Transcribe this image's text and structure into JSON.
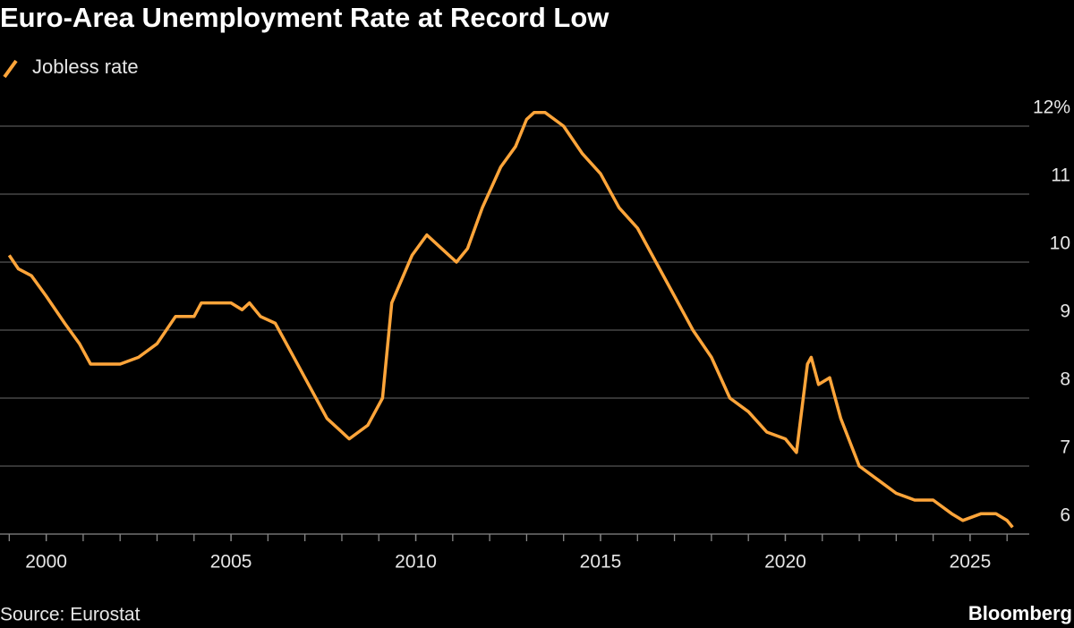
{
  "chart_data": {
    "type": "line",
    "title": "Euro-Area Unemployment Rate at Record Low",
    "source": "Source: Eurostat",
    "brand": "Bloomberg",
    "xlim": [
      1998.75,
      2026.6
    ],
    "xticks": [
      2000,
      2005,
      2010,
      2015,
      2020,
      2025
    ],
    "x_minor_ticks": [
      1999,
      2000,
      2001,
      2002,
      2003,
      2004,
      2005,
      2006,
      2007,
      2008,
      2009,
      2010,
      2011,
      2012,
      2013,
      2014,
      2015,
      2016,
      2017,
      2018,
      2019,
      2020,
      2021,
      2022,
      2023,
      2024,
      2025,
      2026
    ],
    "ylim": [
      6,
      12.5
    ],
    "yticks": [
      6,
      7,
      8,
      9,
      10,
      11,
      {
        "value": 12,
        "label": "12%"
      }
    ],
    "grid": true,
    "x": [
      1999.0,
      1999.25,
      1999.6,
      2000.0,
      2000.5,
      2000.9,
      2001.2,
      2002.0,
      2002.5,
      2003.0,
      2003.5,
      2004.0,
      2004.2,
      2005.0,
      2005.3,
      2005.5,
      2005.8,
      2006.2,
      2006.7,
      2007.2,
      2007.6,
      2008.0,
      2008.2,
      2008.7,
      2009.1,
      2009.35,
      2009.9,
      2010.3,
      2010.7,
      2011.1,
      2011.4,
      2011.8,
      2012.3,
      2012.7,
      2013.0,
      2013.2,
      2013.5,
      2014.0,
      2014.5,
      2015.0,
      2015.5,
      2016.0,
      2016.5,
      2017.0,
      2017.5,
      2018.0,
      2018.5,
      2019.0,
      2019.5,
      2020.0,
      2020.3,
      2020.6,
      2020.7,
      2020.9,
      2021.2,
      2021.5,
      2022.0,
      2022.5,
      2023.0,
      2023.5,
      2024.0,
      2024.5,
      2024.8,
      2025.3,
      2025.7,
      2026.0,
      2026.15
    ],
    "series": [
      {
        "name": "Jobless rate",
        "color": "#ffa53a",
        "values": [
          10.1,
          9.9,
          9.8,
          9.5,
          9.1,
          8.8,
          8.5,
          8.5,
          8.6,
          8.8,
          9.2,
          9.2,
          9.4,
          9.4,
          9.3,
          9.4,
          9.2,
          9.1,
          8.6,
          8.1,
          7.7,
          7.5,
          7.4,
          7.6,
          8.0,
          9.4,
          10.1,
          10.4,
          10.2,
          10.0,
          10.2,
          10.8,
          11.4,
          11.7,
          12.1,
          12.2,
          12.2,
          12.0,
          11.6,
          11.3,
          10.8,
          10.5,
          10.0,
          9.5,
          9.0,
          8.6,
          8.0,
          7.8,
          7.5,
          7.4,
          7.2,
          8.5,
          8.6,
          8.2,
          8.3,
          7.7,
          7.0,
          6.8,
          6.6,
          6.5,
          6.5,
          6.3,
          6.2,
          6.3,
          6.3,
          6.2,
          6.1
        ]
      }
    ]
  }
}
